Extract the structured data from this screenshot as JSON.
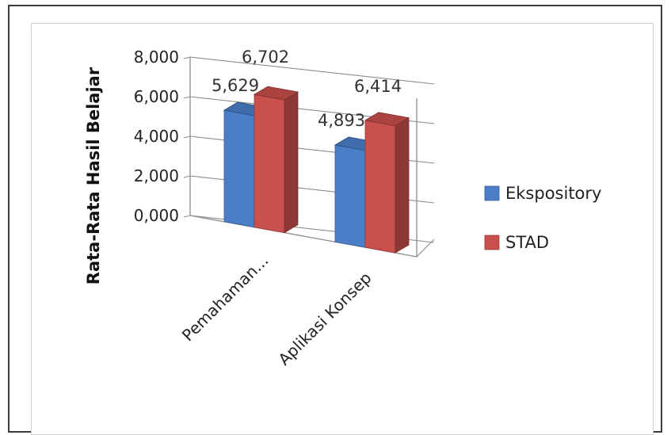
{
  "chart_data": {
    "type": "bar",
    "title": "",
    "xlabel": "",
    "ylabel": "Rata-Rata Hasil Belajar",
    "ylim": [
      0,
      8
    ],
    "yticks": [
      0,
      2,
      4,
      6,
      8
    ],
    "ytick_labels": [
      "0,000",
      "2,000",
      "4,000",
      "6,000",
      "8,000"
    ],
    "categories": [
      "Pemahaman...",
      "Aplikasi Konsep"
    ],
    "series": [
      {
        "name": "Ekspository",
        "values": [
          5.629,
          4.893
        ],
        "labels": [
          "5,629",
          "4,893"
        ],
        "color": "#4a7fc8"
      },
      {
        "name": "STAD",
        "values": [
          6.702,
          6.414
        ],
        "labels": [
          "6,702",
          "6,414"
        ],
        "color": "#c9504c"
      }
    ],
    "grid": true,
    "legend_position": "right",
    "style": "3d-clustered-bar"
  }
}
